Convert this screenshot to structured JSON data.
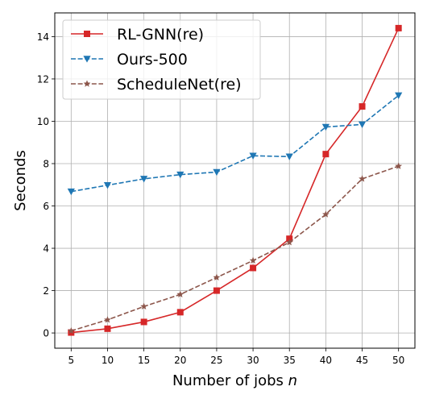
{
  "chart_data": {
    "type": "line",
    "xlabel": {
      "text": "Number of jobs ",
      "var": "n"
    },
    "ylabel": "Seconds",
    "x": [
      5,
      10,
      15,
      20,
      25,
      30,
      35,
      40,
      45,
      50
    ],
    "xticks": [
      "5",
      "10",
      "15",
      "20",
      "25",
      "30",
      "35",
      "40",
      "45",
      "50"
    ],
    "yticks": [
      "0",
      "2",
      "4",
      "6",
      "8",
      "10",
      "12",
      "14"
    ],
    "xlim": [
      2.75,
      52.25
    ],
    "ylim": [
      -0.72,
      15.12
    ],
    "grid": true,
    "legend_position": "top-left",
    "series": [
      {
        "name": "RL-GNN(re)",
        "color": "#d62728",
        "dash": "solid",
        "marker": "square",
        "values": [
          0.02,
          0.2,
          0.52,
          0.98,
          2.0,
          3.07,
          4.45,
          8.45,
          10.7,
          14.4
        ]
      },
      {
        "name": "Ours-500",
        "color": "#1f77b4",
        "dash": "dashed",
        "marker": "triangle-down",
        "values": [
          6.68,
          6.98,
          7.28,
          7.48,
          7.6,
          8.37,
          8.33,
          9.73,
          9.85,
          11.22
        ]
      },
      {
        "name": "ScheduleNet(re)",
        "color": "#8c564b",
        "dash": "dashed",
        "marker": "star",
        "values": [
          0.1,
          0.62,
          1.25,
          1.82,
          2.62,
          3.42,
          4.28,
          5.6,
          7.28,
          7.88
        ]
      }
    ]
  }
}
